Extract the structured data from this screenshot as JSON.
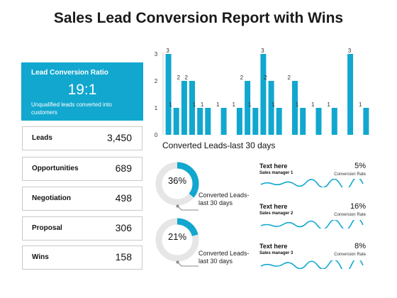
{
  "title": "Sales Lead Conversion Report with Wins",
  "ratio_card": {
    "label": "Lead Conversion Ratio",
    "value": "19:1",
    "description": "Unqualified leads converted into customers"
  },
  "metrics": [
    {
      "label": "Leads",
      "value": "3,450"
    },
    {
      "label": "Opportunities",
      "value": "689"
    },
    {
      "label": "Negotiation",
      "value": "498"
    },
    {
      "label": "Proposal",
      "value": "306"
    },
    {
      "label": "Wins",
      "value": "158"
    }
  ],
  "chart_data": {
    "type": "bar",
    "title": "Converted Leads-last 30 days",
    "ylim": [
      0,
      3
    ],
    "yticks": [
      0,
      1,
      2,
      3
    ],
    "color": "#11a7cf",
    "values": [
      3,
      1,
      2,
      2,
      1,
      1,
      0,
      1,
      0,
      1,
      2,
      1,
      3,
      2,
      1,
      0,
      2,
      1,
      0,
      1,
      0,
      1,
      0,
      3,
      0,
      1
    ]
  },
  "donuts": [
    {
      "percent": 36,
      "label": "36%",
      "caption": "Converted Leads-last 30 days"
    },
    {
      "percent": 21,
      "label": "21%",
      "caption": "Converted Leads-last 30 days"
    }
  ],
  "sales_managers": [
    {
      "heading": "Text here",
      "name": "Sales manager 1",
      "rate": "5%",
      "rate_label": "Conversion Rate"
    },
    {
      "heading": "Text here",
      "name": "Sales manager 2",
      "rate": "16%",
      "rate_label": "Conversion Rate"
    },
    {
      "heading": "Text here",
      "name": "Sales manager 3",
      "rate": "8%",
      "rate_label": "Conversion Rate"
    }
  ],
  "colors": {
    "accent": "#11a7cf",
    "track": "#e6e6e6"
  }
}
